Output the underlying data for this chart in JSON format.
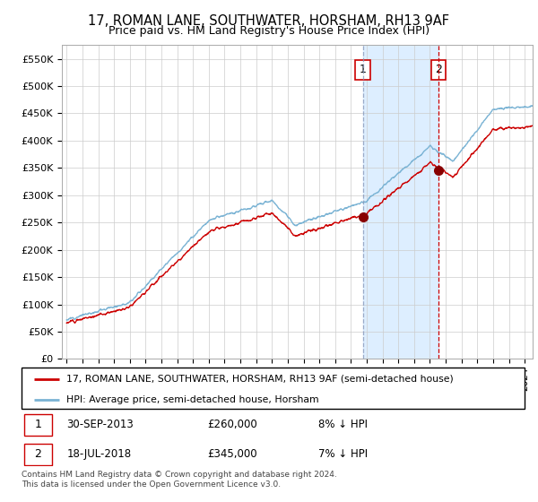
{
  "title": "17, ROMAN LANE, SOUTHWATER, HORSHAM, RH13 9AF",
  "subtitle": "Price paid vs. HM Land Registry's House Price Index (HPI)",
  "ylabel_ticks": [
    "£0",
    "£50K",
    "£100K",
    "£150K",
    "£200K",
    "£250K",
    "£300K",
    "£350K",
    "£400K",
    "£450K",
    "£500K",
    "£550K"
  ],
  "ytick_values": [
    0,
    50000,
    100000,
    150000,
    200000,
    250000,
    300000,
    350000,
    400000,
    450000,
    500000,
    550000
  ],
  "ylim": [
    0,
    575000
  ],
  "xlim_start": 1994.7,
  "xlim_end": 2024.5,
  "hpi_color": "#7ab3d4",
  "price_color": "#cc0000",
  "vline1_color": "#8899bb",
  "vline1_style": "--",
  "vline2_color": "#cc0000",
  "vline2_style": "--",
  "span_color": "#ddeeff",
  "transaction1_date": 2013.75,
  "transaction1_price": 260000,
  "transaction2_date": 2018.54,
  "transaction2_price": 345000,
  "legend_line1": "17, ROMAN LANE, SOUTHWATER, HORSHAM, RH13 9AF (semi-detached house)",
  "legend_line2": "HPI: Average price, semi-detached house, Horsham",
  "footnote": "Contains HM Land Registry data © Crown copyright and database right 2024.\nThis data is licensed under the Open Government Licence v3.0.",
  "background_color": "#ffffff",
  "grid_color": "#cccccc"
}
